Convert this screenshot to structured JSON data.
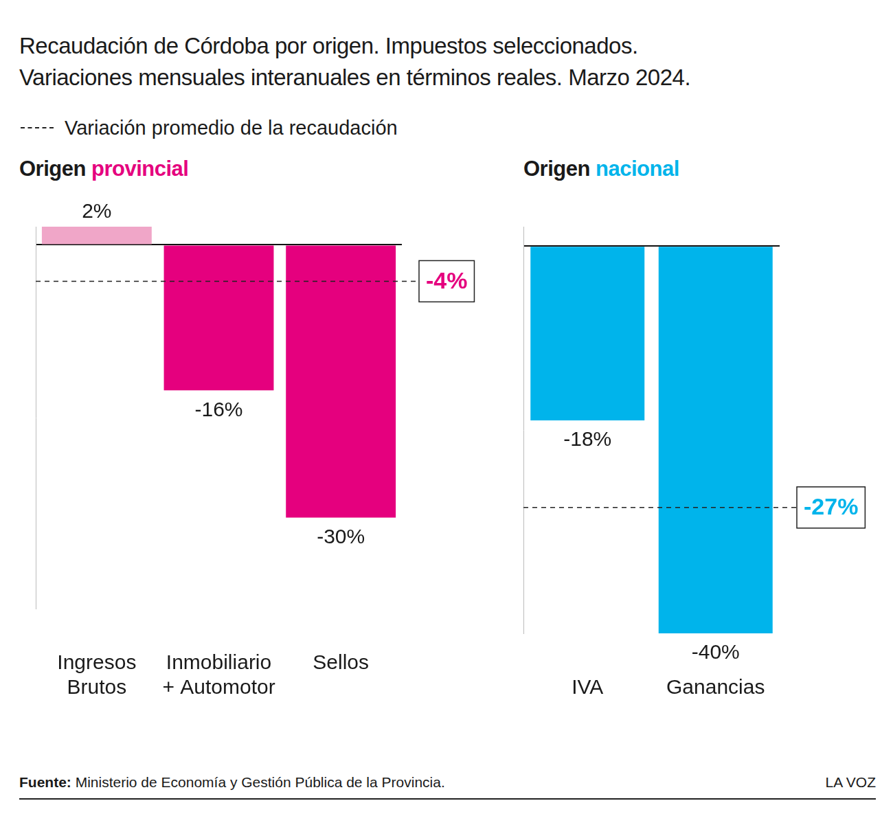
{
  "title": "Recaudación de Córdoba por origen. Impuestos seleccionados.",
  "subtitle": "Variaciones mensuales interanuales en términos reales. Marzo 2024.",
  "average_legend": "Variación promedio de la recaudación",
  "source_label": "Fuente:",
  "source": "Ministerio de Economía y Gestión Pública de la Provincia.",
  "brand": "LA VOZ",
  "chart_data": [
    {
      "type": "bar",
      "title": "Origen provincial",
      "categories": [
        [
          "Ingresos",
          "Brutos"
        ],
        [
          "Inmobiliario",
          "+ Automotor"
        ],
        "Sellos"
      ],
      "values": [
        2,
        -16,
        -30
      ],
      "value_labels": [
        "2%",
        "-16%",
        "-30%"
      ],
      "colors": [
        "#f0a6c8",
        "#e5007e",
        "#e5007e"
      ],
      "ylim": [
        -40,
        2
      ],
      "yticks": [
        0
      ],
      "grid": true,
      "data_labels": true,
      "tick_labels": "x",
      "average": {
        "value": -4,
        "label": "-4%",
        "color": "#e5007e"
      }
    },
    {
      "type": "bar",
      "title": "Origen nacional",
      "categories": [
        "IVA",
        "Ganancias"
      ],
      "values": [
        -18,
        -40
      ],
      "value_labels": [
        "-18%",
        "-40%"
      ],
      "colors": [
        "#00b4eb",
        "#00b4eb"
      ],
      "ylim": [
        -40,
        2
      ],
      "yticks": [
        0
      ],
      "grid": true,
      "data_labels": true,
      "tick_labels": "x",
      "average": {
        "value": -27,
        "label": "-27%",
        "color": "#00b4eb"
      }
    }
  ]
}
